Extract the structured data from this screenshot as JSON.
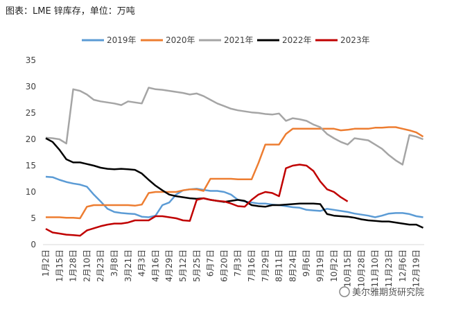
{
  "chart_data": {
    "type": "line",
    "title": "图表：LME 锌库存，单位：万吨",
    "watermark": "美尔雅期货研究院",
    "categories": [
      "1月2日",
      null,
      "1月15日",
      null,
      "1月28日",
      null,
      "2月10日",
      null,
      "2月23日",
      null,
      "3月8日",
      null,
      "3月21日",
      null,
      "4月3日",
      null,
      "4月16日",
      null,
      "4月29日",
      null,
      "5月12日",
      null,
      "5月25日",
      null,
      "6月7日",
      null,
      "6月20日",
      null,
      "7月3日",
      null,
      "7月16日",
      null,
      "7月29日",
      null,
      "8月11日",
      null,
      "8月24日",
      null,
      "9月6日",
      null,
      "9月19日",
      null,
      "10月2日",
      null,
      "10月15日",
      null,
      "10月28日",
      null,
      "11月10日",
      null,
      "11月23日",
      null,
      "12月6日",
      null,
      "12月19日",
      null
    ],
    "ylim": [
      0,
      35
    ],
    "yticks": [
      0,
      5,
      10,
      15,
      20,
      25,
      30,
      35
    ],
    "grid": false,
    "legend": "top",
    "series": [
      {
        "name": "2019年",
        "color": "#5b9bd5",
        "values": [
          12.9,
          12.8,
          12.3,
          11.9,
          11.6,
          11.4,
          11,
          9.5,
          8.2,
          6.8,
          6.2,
          6,
          5.9,
          5.8,
          5.3,
          5.2,
          5.5,
          7.5,
          8,
          9.5,
          10.3,
          10.5,
          10.6,
          10.4,
          10.2,
          10.2,
          10,
          9.5,
          8.5,
          8.2,
          8,
          7.8,
          7.8,
          7.6,
          7.5,
          7.3,
          7.1,
          7,
          6.6,
          6.5,
          6.4,
          6.8,
          6.6,
          6.4,
          6.2,
          5.9,
          5.7,
          5.5,
          5.2,
          5.5,
          5.9,
          6,
          6,
          5.8,
          5.4,
          5.2
        ]
      },
      {
        "name": "2020年",
        "color": "#ed7d31",
        "values": [
          5.2,
          5.2,
          5.2,
          5.1,
          5.1,
          5.0,
          7.2,
          7.5,
          7.5,
          7.5,
          7.5,
          7.5,
          7.5,
          7.4,
          7.6,
          9.8,
          10,
          10,
          10,
          10,
          10.3,
          10.5,
          10.5,
          10.2,
          12.5,
          12.5,
          12.5,
          12.5,
          12.4,
          12.4,
          12.4,
          15.5,
          19,
          19,
          19,
          21,
          22,
          22,
          22,
          22,
          22,
          22,
          22,
          21.7,
          21.8,
          22,
          22,
          22,
          22.2,
          22.2,
          22.3,
          22.3,
          22,
          21.7,
          21.3,
          20.5
        ]
      },
      {
        "name": "2021年",
        "color": "#a5a5a5",
        "values": [
          20.3,
          20.2,
          20,
          19.2,
          29.5,
          29.2,
          28.5,
          27.5,
          27.2,
          27,
          26.8,
          26.5,
          27.2,
          27,
          26.8,
          29.8,
          29.5,
          29.4,
          29.2,
          29,
          28.8,
          28.5,
          28.7,
          28.2,
          27.5,
          26.8,
          26.3,
          25.8,
          25.5,
          25.3,
          25.1,
          25,
          24.8,
          24.7,
          24.9,
          23.5,
          24,
          23.8,
          23.5,
          22.8,
          22.3,
          21,
          20.2,
          19.5,
          19,
          20.2,
          20,
          19.8,
          19,
          18.2,
          17,
          16,
          15.2,
          20.8,
          20.5,
          20
        ]
      },
      {
        "name": "2022年",
        "color": "#000000",
        "values": [
          20.2,
          19.5,
          18,
          16.2,
          15.6,
          15.6,
          15.3,
          15,
          14.6,
          14.4,
          14.3,
          14.4,
          14.3,
          14.2,
          13.5,
          12.3,
          11.2,
          10.3,
          9.5,
          9.2,
          9,
          8.8,
          8.7,
          8.8,
          8.5,
          8.3,
          8.1,
          8.3,
          8.5,
          8.3,
          7.5,
          7.3,
          7.2,
          7.5,
          7.5,
          7.6,
          7.7,
          7.8,
          7.8,
          7.8,
          7.7,
          5.8,
          5.5,
          5.4,
          5.3,
          5.1,
          4.8,
          4.6,
          4.5,
          4.4,
          4.4,
          4.2,
          4,
          3.8,
          3.8,
          3.2
        ]
      },
      {
        "name": "2023年",
        "color": "#c00000",
        "values": [
          3,
          2.3,
          2.1,
          1.9,
          1.8,
          1.7,
          2.7,
          3.1,
          3.5,
          3.8,
          4,
          4,
          4.2,
          4.6,
          4.6,
          4.6,
          5.4,
          5.4,
          5.2,
          5,
          4.6,
          4.5,
          8.5,
          8.8,
          8.5,
          8.3,
          8.2,
          7.8,
          7.3,
          7.2,
          8.5,
          9.5,
          10,
          9.8,
          9.2,
          14.5,
          15,
          15.2,
          15,
          14,
          12,
          10.5,
          10,
          9,
          8.2,
          null,
          null,
          null,
          null,
          null,
          null,
          null,
          null,
          null,
          null,
          null
        ]
      }
    ]
  }
}
